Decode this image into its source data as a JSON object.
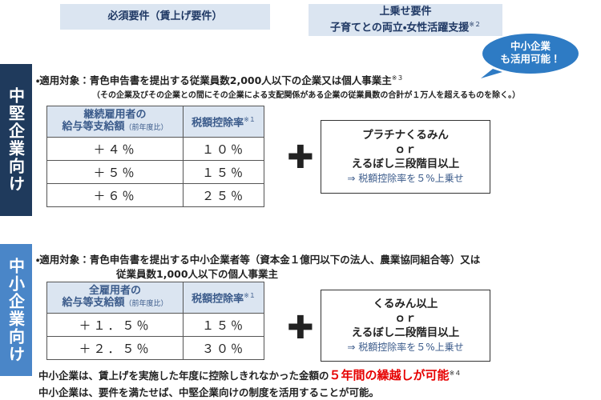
{
  "header": {
    "required": "必須要件（賃上げ要件）",
    "additional": [
      "上乗せ要件",
      "子育てとの両立・女性活躍支援"
    ],
    "additional_note": "※２"
  },
  "bubble": [
    "中小企業",
    "も活用可能！"
  ],
  "sections": [
    {
      "label": "中堅企業向け",
      "target": [
        "・適用対象：青色申告書を提出する従業員数2,000人以下の企業又は個人事業主"
      ],
      "target_note": "※３",
      "exclusion": "（その企業及びその企業との間にその企業による支配関係がある企業の従業員数の合計が１万人を超えるものを除く。）",
      "table": {
        "header": [
          "継続雇用者の",
          "給与等支給額",
          "（前年度比）",
          "税額控除率",
          "※１"
        ],
        "rows": [
          [
            "＋４％",
            "１０％"
          ],
          [
            "＋５％",
            "１５％"
          ],
          [
            "＋６％",
            "２５％"
          ]
        ]
      },
      "bonus": [
        "プラチナくるみん",
        "ｏｒ",
        "えるぼし三段階目以上",
        "⇒ 税額控除率を５%上乗せ"
      ]
    },
    {
      "label": "中小企業向け",
      "target": [
        "・適用対象：青色申告書を提出する中小企業者等（資本金１億円以下の法人、農業協同組合等）又は",
        "従業員数1,000人以下の個人事業主"
      ],
      "table": {
        "header": [
          "全雇用者の",
          "給与等支給額",
          "（前年度比）",
          "税額控除率",
          "※１"
        ],
        "rows": [
          [
            "＋１．５％",
            "１５％"
          ],
          [
            "＋２．５％",
            "３０％"
          ]
        ]
      },
      "bonus": [
        "くるみん以上",
        "ｏｒ",
        "えるぼし二段階目以上",
        "⇒ 税額控除率を５%上乗せ"
      ]
    }
  ],
  "footer": {
    "line1": "中小企業は、賃上げを実施した年度に控除しきれなかった金額の",
    "line1_highlight": "５年間の繰越しが可能",
    "line1_note": "※４",
    "line2": "中小企業は、要件を満たせば、中堅企業向けの制度を活用することが可能。"
  }
}
